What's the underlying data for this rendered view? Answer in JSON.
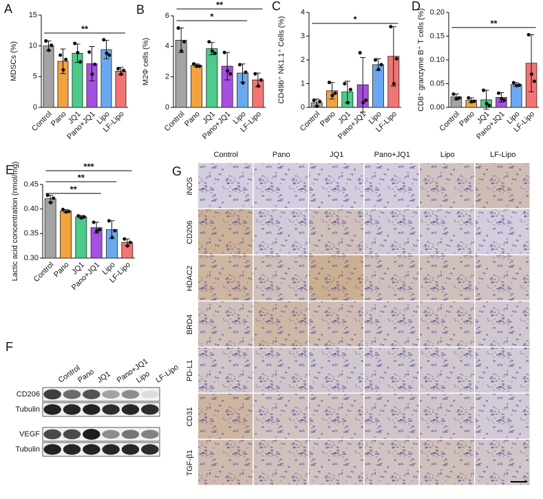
{
  "chart_data": [
    {
      "type": "bar",
      "panel": "A",
      "ylabel": "MDSCs (%)",
      "categories": [
        "Control",
        "Pano",
        "JQ1",
        "Pano+JQ1",
        "Lipo",
        "LF-Lipo"
      ],
      "colors": [
        "#a3a3a3",
        "#f2a33e",
        "#4ccb8a",
        "#a64fe0",
        "#6aa9f2",
        "#f27474"
      ],
      "values": [
        10,
        7.5,
        8.8,
        7.1,
        9.4,
        5.9
      ],
      "errors": [
        0.8,
        2.0,
        1.5,
        2.8,
        1.5,
        0.6
      ],
      "points": [
        [
          10.8,
          9.3,
          10.1
        ],
        [
          8.5,
          6.1,
          7.8
        ],
        [
          10.4,
          8.9,
          7.4
        ],
        [
          9.0,
          5.4,
          7.0
        ],
        [
          11.0,
          8.8,
          8.5
        ],
        [
          6.3,
          5.4,
          6.0
        ]
      ],
      "ylim": [
        0,
        15
      ],
      "yticks": [
        0,
        5,
        10,
        15
      ],
      "significance": [
        {
          "from": "Control",
          "to": "LF-Lipo",
          "label": "**"
        }
      ]
    },
    {
      "type": "bar",
      "panel": "B",
      "ylabel": "M2Φ cells (%)",
      "categories": [
        "Control",
        "Pano",
        "JQ1",
        "Pano+JQ1",
        "Lipo",
        "LF-Lipo"
      ],
      "colors": [
        "#a3a3a3",
        "#f2a33e",
        "#4ccb8a",
        "#a64fe0",
        "#6aa9f2",
        "#f27474"
      ],
      "values": [
        4.4,
        2.75,
        3.85,
        2.7,
        2.25,
        1.8
      ],
      "errors": [
        0.8,
        0.1,
        0.4,
        0.9,
        0.6,
        0.45
      ],
      "points": [
        [
          5.2,
          3.7,
          4.3
        ],
        [
          2.85,
          2.7,
          2.7
        ],
        [
          4.3,
          3.7,
          3.55
        ],
        [
          3.6,
          2.4,
          2.2
        ],
        [
          2.8,
          1.6,
          2.3
        ],
        [
          2.2,
          1.4,
          1.8
        ]
      ],
      "ylim": [
        0,
        6
      ],
      "yticks": [
        0,
        2,
        4,
        6
      ],
      "significance": [
        {
          "from": "Control",
          "to": "LF-Lipo",
          "label": "**"
        },
        {
          "from": "Control",
          "to": "Lipo",
          "label": "*"
        }
      ]
    },
    {
      "type": "bar",
      "panel": "C",
      "ylabel": "CD49b⁺ NK1.1⁺ Cells (%)",
      "categories": [
        "Control",
        "Pano",
        "JQ1",
        "Pano+JQ1",
        "Lipo",
        "LF-Lipo"
      ],
      "colors": [
        "#a3a3a3",
        "#f2a33e",
        "#4ccb8a",
        "#a64fe0",
        "#6aa9f2",
        "#f27474"
      ],
      "values": [
        0.2,
        0.7,
        0.65,
        0.95,
        1.8,
        2.15
      ],
      "errors": [
        0.15,
        0.35,
        0.45,
        1.15,
        0.25,
        1.25
      ],
      "points": [
        [
          0.3,
          0.05,
          0.25
        ],
        [
          1.05,
          0.5,
          0.6
        ],
        [
          1.0,
          0.2,
          0.75
        ],
        [
          2.3,
          0.2,
          0.3
        ],
        [
          2.0,
          1.6,
          1.8
        ],
        [
          3.4,
          1.0,
          2.05
        ]
      ],
      "ylim": [
        0,
        4
      ],
      "yticks": [
        0,
        1,
        2,
        3,
        4
      ],
      "significance": [
        {
          "from": "Control",
          "to": "LF-Lipo",
          "label": "*"
        }
      ]
    },
    {
      "type": "bar",
      "panel": "D",
      "ylabel": "CD8⁺ granzyme B⁺ T cells (%)",
      "categories": [
        "Control",
        "Pano",
        "JQ1",
        "Pano+JQ1",
        "Lipo",
        "LF-Lipo"
      ],
      "colors": [
        "#a3a3a3",
        "#f2a33e",
        "#4ccb8a",
        "#a64fe0",
        "#6aa9f2",
        "#f27474"
      ],
      "values": [
        0.022,
        0.015,
        0.016,
        0.021,
        0.048,
        0.093
      ],
      "errors": [
        0.006,
        0.005,
        0.02,
        0.01,
        0.004,
        0.06
      ],
      "points": [
        [
          0.028,
          0.018,
          0.02
        ],
        [
          0.02,
          0.012,
          0.013
        ],
        [
          0.036,
          0.008,
          0.004
        ],
        [
          0.03,
          0.018,
          0.015
        ],
        [
          0.052,
          0.046,
          0.047
        ],
        [
          0.153,
          0.07,
          0.055
        ]
      ],
      "ylim": [
        0,
        0.2
      ],
      "yticks": [
        {
          "value": 0,
          "label": "0.00"
        },
        {
          "value": 0.05,
          "label": "0.05"
        },
        {
          "value": 0.1,
          "label": "0.10"
        },
        {
          "value": 0.15,
          "label": "0.15"
        },
        {
          "value": 0.2,
          "label": "0.20"
        }
      ],
      "significance": [
        {
          "from": "Control",
          "to": "LF-Lipo",
          "label": "**"
        }
      ]
    },
    {
      "type": "bar",
      "panel": "E",
      "ylabel": "Lactic acid concentration (nmol/mg)",
      "categories": [
        "Control",
        "Pano",
        "JQ1",
        "Pano+JQ1",
        "Lipo",
        "LF-Lipo"
      ],
      "colors": [
        "#a3a3a3",
        "#f2a33e",
        "#4ccb8a",
        "#a64fe0",
        "#6aa9f2",
        "#f27474"
      ],
      "values": [
        0.421,
        0.396,
        0.384,
        0.362,
        0.358,
        0.332
      ],
      "errors": [
        0.007,
        0.003,
        0.003,
        0.011,
        0.018,
        0.007
      ],
      "points": [
        [
          0.428,
          0.413,
          0.422
        ],
        [
          0.399,
          0.394,
          0.395
        ],
        [
          0.386,
          0.382,
          0.384
        ],
        [
          0.373,
          0.355,
          0.358
        ],
        [
          0.376,
          0.342,
          0.356
        ],
        [
          0.339,
          0.325,
          0.332
        ]
      ],
      "ylim": [
        0.3,
        0.45
      ],
      "yticks": [
        {
          "value": 0.3,
          "label": "0.30"
        },
        {
          "value": 0.35,
          "label": "0.35"
        },
        {
          "value": 0.4,
          "label": "0.40"
        },
        {
          "value": 0.45,
          "label": "0.45"
        }
      ],
      "significance": [
        {
          "from": "Control",
          "to": "LF-Lipo",
          "label": "***"
        },
        {
          "from": "Control",
          "to": "Lipo",
          "label": "**"
        },
        {
          "from": "Control",
          "to": "Pano+JQ1",
          "label": "**"
        }
      ]
    }
  ],
  "blot": {
    "panel": "F",
    "lanes": [
      "Control",
      "Pano",
      "JQ1",
      "Pano+JQ1",
      "Lipo",
      "LF-Lipo"
    ],
    "rows": [
      "CD206",
      "Tubulin",
      "VEGF",
      "Tubulin"
    ]
  },
  "ihc": {
    "panel": "G",
    "columns": [
      "Control",
      "Pano",
      "JQ1",
      "Pano+JQ1",
      "Lipo",
      "LF-Lipo"
    ],
    "rows": [
      "iNOS",
      "CD206",
      "HDAC2",
      "BRD4",
      "PD-L1",
      "CD31",
      "TGF-β1"
    ]
  }
}
